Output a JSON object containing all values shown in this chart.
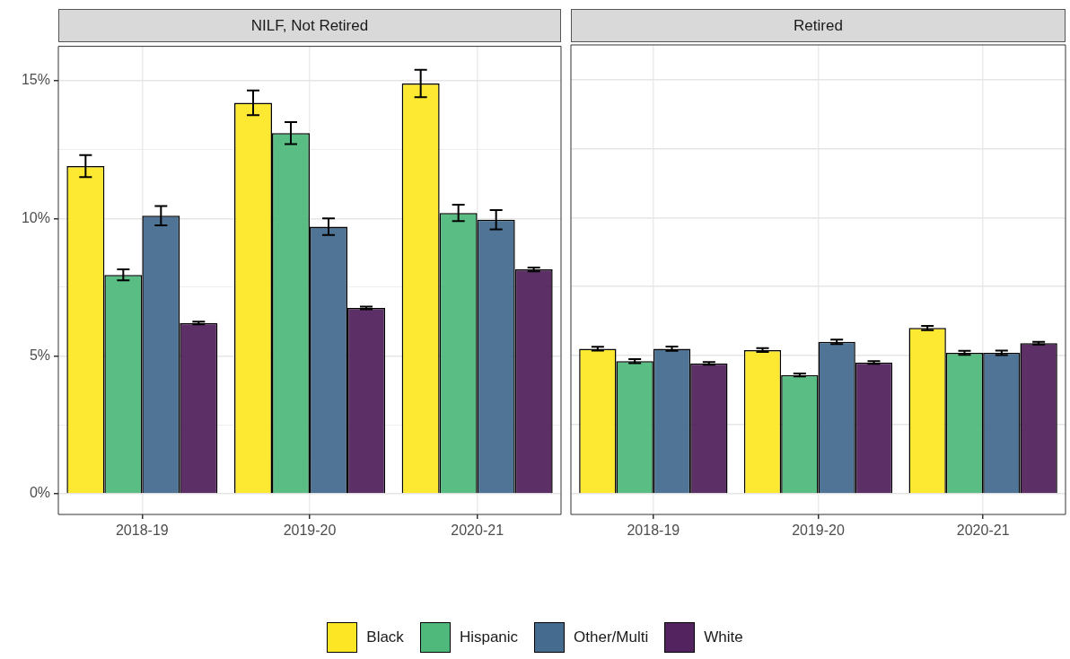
{
  "chart_data": [
    {
      "type": "bar",
      "title": "NILF, Not Retired",
      "categories": [
        "2018-19",
        "2019-20",
        "2020-21"
      ],
      "series": [
        {
          "name": "Black",
          "color": "#fde725",
          "values": [
            11.9,
            14.2,
            14.9
          ],
          "errors": [
            0.4,
            0.45,
            0.5
          ]
        },
        {
          "name": "Hispanic",
          "color": "#4fb97c",
          "values": [
            7.95,
            13.1,
            10.2
          ],
          "errors": [
            0.2,
            0.4,
            0.3
          ]
        },
        {
          "name": "Other/Multi",
          "color": "#456b8e",
          "values": [
            10.1,
            9.7,
            9.95
          ],
          "errors": [
            0.35,
            0.3,
            0.35
          ]
        },
        {
          "name": "White",
          "color": "#52235e",
          "values": [
            6.2,
            6.75,
            8.15
          ],
          "errors": [
            0.05,
            0.05,
            0.07
          ]
        }
      ],
      "ylim": [
        -0.75,
        16.25
      ],
      "yticks": [
        {
          "value": 0,
          "label": "0%"
        },
        {
          "value": 2.5,
          "label": null
        },
        {
          "value": 5,
          "label": "5%"
        },
        {
          "value": 7.5,
          "label": null
        },
        {
          "value": 10,
          "label": "10%"
        },
        {
          "value": 12.5,
          "label": null
        },
        {
          "value": 15,
          "label": "15%"
        }
      ],
      "grid": true,
      "legend": "bottom"
    },
    {
      "type": "bar",
      "title": "Retired",
      "categories": [
        "2018-19",
        "2019-20",
        "2020-21"
      ],
      "series": [
        {
          "name": "Black",
          "color": "#fde725",
          "values": [
            5.25,
            5.2,
            6.0
          ],
          "errors": [
            0.07,
            0.07,
            0.08
          ]
        },
        {
          "name": "Hispanic",
          "color": "#4fb97c",
          "values": [
            4.8,
            4.3,
            5.1
          ],
          "errors": [
            0.07,
            0.05,
            0.07
          ]
        },
        {
          "name": "Other/Multi",
          "color": "#456b8e",
          "values": [
            5.25,
            5.5,
            5.1
          ],
          "errors": [
            0.08,
            0.08,
            0.08
          ]
        },
        {
          "name": "White",
          "color": "#52235e",
          "values": [
            4.72,
            4.75,
            5.45
          ],
          "errors": [
            0.05,
            0.05,
            0.05
          ]
        }
      ],
      "ylim": [
        -0.75,
        16.25
      ],
      "yticks": [
        0,
        2.5,
        5,
        7.5,
        10,
        12.5,
        15
      ],
      "grid": true,
      "tick_labels": "x",
      "legend": "bottom"
    }
  ]
}
